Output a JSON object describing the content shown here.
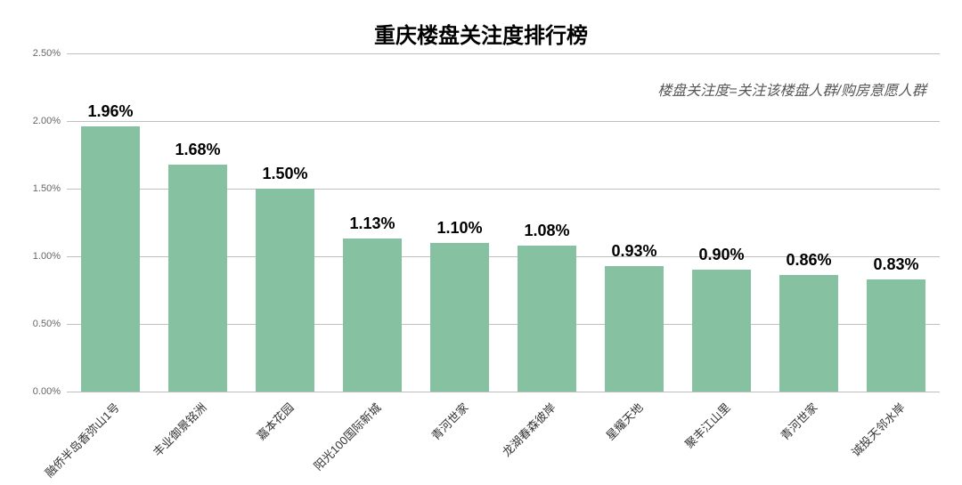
{
  "chart": {
    "type": "bar",
    "title": "重庆楼盘关注度排行榜",
    "title_fontsize": 24,
    "title_fontweight": 700,
    "subtitle": "楼盘关注度=关注该楼盘人群/购房意愿人群",
    "subtitle_fontsize": 16,
    "background_color": "#ffffff",
    "bar_color": "#86c2a2",
    "grid_color": "#bfbfbf",
    "ylim": [
      0,
      2.5
    ],
    "yticks": [
      0.0,
      0.5,
      1.0,
      1.5,
      2.0,
      2.5
    ],
    "ytick_labels": [
      "0.00%",
      "0.50%",
      "1.00%",
      "1.50%",
      "2.00%",
      "2.50%"
    ],
    "ytick_fontsize": 11,
    "value_label_fontsize": 18,
    "xlabel_fontsize": 13,
    "xlabel_rotation_deg": -45,
    "bar_width_ratio": 0.68,
    "categories": [
      "融侨半岛香弥山1号",
      "丰业御景铭洲",
      "嘉本花园",
      "阳光100国际新城",
      "青河世家",
      "龙湖春森彼岸",
      "星耀天地",
      "聚丰江山里",
      "青河世家",
      "诚投天邻水岸"
    ],
    "values": [
      1.96,
      1.68,
      1.5,
      1.13,
      1.1,
      1.08,
      0.93,
      0.9,
      0.86,
      0.83
    ],
    "value_labels": [
      "1.96%",
      "1.68%",
      "1.50%",
      "1.13%",
      "1.10%",
      "1.08%",
      "0.93%",
      "0.90%",
      "0.86%",
      "0.83%"
    ]
  }
}
